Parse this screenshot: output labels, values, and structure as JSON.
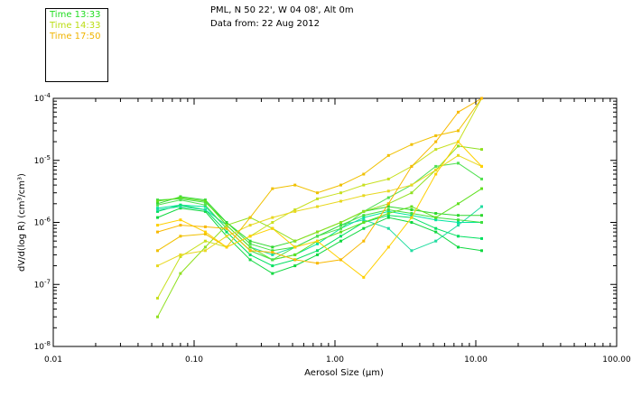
{
  "legend": [
    {
      "label": "Time 13:33",
      "color": "#22dd22"
    },
    {
      "label": "Time 14:33",
      "color": "#bbdd11"
    },
    {
      "label": "Time 17:50",
      "color": "#f0b400"
    }
  ],
  "header": {
    "line1": "PML, N 50 22', W 04 08', Alt 0m",
    "line2": "Data from: 22 Aug 2012"
  },
  "chart_data": {
    "type": "line",
    "title": "PML, N 50 22', W 04 08', Alt 0m",
    "subtitle": "Data from: 22 Aug 2012",
    "xlabel": "Aerosol Size (μm)",
    "ylabel": "dV/d(log R) (cm³/cm³)",
    "xscale": "log",
    "yscale": "log",
    "xlim": [
      0.01,
      100
    ],
    "ylim": [
      1e-08,
      0.0001
    ],
    "x_ticks": [
      {
        "value": 0.01,
        "label": "0.01"
      },
      {
        "value": 0.1,
        "label": "0.10"
      },
      {
        "value": 1,
        "label": "1.00"
      },
      {
        "value": 10,
        "label": "10.00"
      },
      {
        "value": 100,
        "label": "100.00"
      }
    ],
    "y_ticks": [
      {
        "value": 0.0001,
        "base": "10",
        "exp": "-4"
      },
      {
        "value": 1e-05,
        "base": "10",
        "exp": "-5"
      },
      {
        "value": 1e-06,
        "base": "10",
        "exp": "-6"
      },
      {
        "value": 1e-07,
        "base": "10",
        "exp": "-7"
      },
      {
        "value": 1e-08,
        "base": "10",
        "exp": "-8"
      }
    ],
    "x": [
      0.055,
      0.08,
      0.12,
      0.17,
      0.25,
      0.36,
      0.52,
      0.75,
      1.1,
      1.6,
      2.4,
      3.5,
      5.2,
      7.5,
      11.0
    ],
    "series": [
      {
        "name": "s1",
        "color": "#00e5a0",
        "values": [
          1.7e-06,
          1.9e-06,
          1.8e-06,
          8e-07,
          3.5e-07,
          2.5e-07,
          3e-07,
          4.5e-07,
          8e-07,
          1.2e-06,
          1.5e-06,
          1.3e-06,
          1.1e-06,
          1e-06,
          1e-06
        ]
      },
      {
        "name": "s2",
        "color": "#00e060",
        "values": [
          1.5e-06,
          1.9e-06,
          1.6e-06,
          7e-07,
          3e-07,
          2e-07,
          2.5e-07,
          3.5e-07,
          6e-07,
          1e-06,
          1.3e-06,
          1.2e-06,
          8e-07,
          6e-07,
          5.5e-07
        ]
      },
      {
        "name": "s3",
        "color": "#10d840",
        "values": [
          1.2e-06,
          1.7e-06,
          1.5e-06,
          6e-07,
          2.5e-07,
          1.5e-07,
          2e-07,
          3e-07,
          5e-07,
          8e-07,
          1.2e-06,
          1e-06,
          7e-07,
          4e-07,
          3.5e-07
        ]
      },
      {
        "name": "s4",
        "color": "#20dca0",
        "values": [
          1.6e-06,
          1.8e-06,
          1.6e-06,
          9e-07,
          4e-07,
          3e-07,
          4e-07,
          6e-07,
          9e-07,
          1.1e-06,
          8e-07,
          3.5e-07,
          5e-07,
          9e-07,
          1.8e-06
        ]
      },
      {
        "name": "s5",
        "color": "#40e040",
        "values": [
          2.3e-06,
          2.4e-06,
          2.1e-06,
          1e-06,
          4.5e-07,
          3.5e-07,
          4e-07,
          6e-07,
          9e-07,
          1.3e-06,
          1.6e-06,
          1.4e-06,
          1.2e-06,
          1.1e-06,
          1e-06
        ]
      },
      {
        "name": "s6",
        "color": "#30d830",
        "values": [
          2e-06,
          2.6e-06,
          2.3e-06,
          1e-06,
          5e-07,
          4e-07,
          5e-07,
          7e-07,
          1e-06,
          1.5e-06,
          1.8e-06,
          1.6e-06,
          1.4e-06,
          1.3e-06,
          1.3e-06
        ]
      },
      {
        "name": "s7",
        "color": "#60e020",
        "values": [
          2.2e-06,
          2.5e-06,
          2.2e-06,
          9e-07,
          4e-07,
          2.5e-07,
          3e-07,
          5e-07,
          7e-07,
          1e-06,
          1.4e-06,
          1.8e-06,
          1.2e-06,
          2e-06,
          3.5e-06
        ]
      },
      {
        "name": "s8",
        "color": "#50e050",
        "values": [
          1.9e-06,
          2.3e-06,
          1.9e-06,
          8e-07,
          3.5e-07,
          2.5e-07,
          4e-07,
          6e-07,
          8e-07,
          1.5e-06,
          2.5e-06,
          4e-06,
          8e-06,
          9e-06,
          5e-06
        ]
      },
      {
        "name": "s9",
        "color": "#90e020",
        "values": [
          3e-08,
          1.5e-07,
          4e-07,
          9e-07,
          1.2e-06,
          8e-07,
          5e-07,
          7e-07,
          1e-06,
          1.5e-06,
          2e-06,
          3e-06,
          7e-06,
          1.7e-05,
          1.5e-05
        ]
      },
      {
        "name": "s10",
        "color": "#c8e020",
        "values": [
          6e-08,
          2.8e-07,
          5e-07,
          4e-07,
          6e-07,
          1e-06,
          1.6e-06,
          2.4e-06,
          3e-06,
          4e-06,
          5e-06,
          8e-06,
          1.5e-05,
          2e-05,
          0.0001
        ]
      },
      {
        "name": "s11",
        "color": "#e8d820",
        "values": [
          2e-07,
          3e-07,
          3.5e-07,
          6e-07,
          9e-07,
          1.2e-06,
          1.5e-06,
          1.8e-06,
          2.2e-06,
          2.7e-06,
          3.2e-06,
          4e-06,
          7e-06,
          1.2e-05,
          8e-06
        ]
      },
      {
        "name": "s12",
        "color": "#f0c000",
        "values": [
          3.5e-07,
          6e-07,
          6.5e-07,
          4e-07,
          1.2e-06,
          3.5e-06,
          4e-06,
          3e-06,
          4e-06,
          6e-06,
          1.2e-05,
          1.8e-05,
          2.5e-05,
          3e-05,
          0.0001
        ]
      },
      {
        "name": "s13",
        "color": "#ffd000",
        "values": [
          9e-07,
          1.1e-06,
          7e-07,
          4e-07,
          6e-07,
          8e-07,
          4e-07,
          5e-07,
          2.5e-07,
          1.3e-07,
          4e-07,
          1.2e-06,
          6e-06,
          2e-05,
          8e-06
        ]
      },
      {
        "name": "s14",
        "color": "#f8b800",
        "values": [
          7e-07,
          9e-07,
          8.5e-07,
          8e-07,
          3.5e-07,
          3.3e-07,
          2.5e-07,
          2.2e-07,
          2.5e-07,
          5e-07,
          2e-06,
          8e-06,
          2e-05,
          6e-05,
          0.0001
        ]
      }
    ]
  }
}
